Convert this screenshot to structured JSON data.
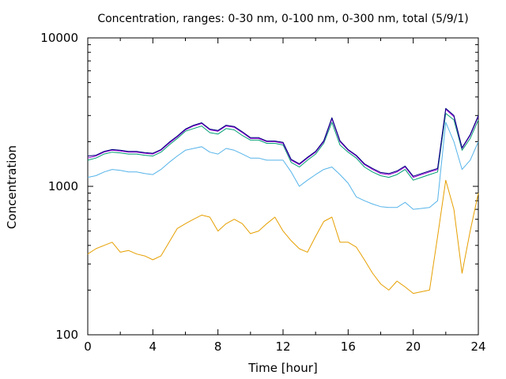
{
  "chart_data": {
    "type": "line",
    "title": "Concentration, ranges: 0-30 nm, 0-100 nm, 0-300 nm, total (5/9/1)",
    "xlabel": "Time [hour]",
    "ylabel": "Concentration",
    "xlim": [
      0,
      24
    ],
    "ylim": [
      100,
      10000
    ],
    "yscale": "log",
    "grid": false,
    "legend": "none",
    "xticks": [
      0,
      4,
      8,
      12,
      16,
      20,
      24
    ],
    "xtick_labels": [
      "0",
      "4",
      "8",
      "12",
      "16",
      "20",
      "24"
    ],
    "yticks": [
      100,
      1000,
      10000
    ],
    "ytick_labels": [
      "100",
      "1000",
      "10000"
    ],
    "x": [
      0,
      0.5,
      1,
      1.5,
      2,
      2.5,
      3,
      3.5,
      4,
      4.5,
      5,
      5.5,
      6,
      6.5,
      7,
      7.5,
      8,
      8.5,
      9,
      9.5,
      10,
      10.5,
      11,
      11.5,
      12,
      12.5,
      13,
      13.5,
      14,
      14.5,
      15,
      15.5,
      16,
      16.5,
      17,
      17.5,
      18,
      18.5,
      19,
      19.5,
      20,
      20.5,
      21,
      21.5,
      22,
      22.5,
      23,
      23.5,
      24
    ],
    "series": [
      {
        "color": "#e69f00",
        "values": [
          350,
          380,
          400,
          420,
          360,
          370,
          350,
          340,
          320,
          340,
          420,
          520,
          560,
          600,
          640,
          620,
          500,
          560,
          600,
          560,
          480,
          500,
          560,
          620,
          500,
          430,
          380,
          360,
          460,
          580,
          620,
          420,
          420,
          390,
          320,
          260,
          220,
          200,
          230,
          210,
          190,
          195,
          200,
          460,
          1100,
          700,
          260,
          500,
          900
        ]
      },
      {
        "color": "#56b4e9",
        "values": [
          1150,
          1180,
          1250,
          1300,
          1280,
          1250,
          1250,
          1220,
          1200,
          1300,
          1450,
          1600,
          1750,
          1800,
          1850,
          1700,
          1650,
          1800,
          1750,
          1650,
          1550,
          1550,
          1500,
          1500,
          1500,
          1250,
          1000,
          1100,
          1200,
          1300,
          1350,
          1200,
          1050,
          850,
          800,
          760,
          730,
          720,
          720,
          780,
          700,
          710,
          720,
          800,
          2700,
          2000,
          1300,
          1500,
          2000
        ]
      },
      {
        "color": "#009e73",
        "values": [
          1500,
          1550,
          1650,
          1700,
          1680,
          1650,
          1650,
          1620,
          1600,
          1700,
          1900,
          2100,
          2350,
          2450,
          2550,
          2300,
          2250,
          2450,
          2400,
          2200,
          2050,
          2050,
          1950,
          1950,
          1900,
          1450,
          1350,
          1500,
          1650,
          1950,
          2700,
          1900,
          1700,
          1550,
          1350,
          1250,
          1180,
          1150,
          1200,
          1300,
          1100,
          1150,
          1200,
          1250,
          3100,
          2800,
          1750,
          2100,
          2800
        ]
      },
      {
        "color": "#9400d3",
        "values": [
          1550,
          1600,
          1700,
          1750,
          1730,
          1700,
          1700,
          1670,
          1650,
          1750,
          1950,
          2150,
          2400,
          2550,
          2650,
          2400,
          2350,
          2550,
          2500,
          2300,
          2100,
          2100,
          2000,
          2000,
          1950,
          1500,
          1400,
          1550,
          1700,
          2000,
          2850,
          2000,
          1750,
          1600,
          1400,
          1300,
          1220,
          1200,
          1250,
          1350,
          1150,
          1200,
          1250,
          1300,
          3300,
          2950,
          1800,
          2200,
          2950
        ]
      },
      {
        "color": "#000080",
        "values": [
          1600,
          1620,
          1720,
          1770,
          1750,
          1720,
          1720,
          1690,
          1670,
          1770,
          1980,
          2180,
          2430,
          2580,
          2680,
          2430,
          2380,
          2580,
          2530,
          2330,
          2130,
          2130,
          2020,
          2020,
          1980,
          1520,
          1420,
          1570,
          1720,
          2030,
          2900,
          2030,
          1770,
          1620,
          1420,
          1320,
          1240,
          1220,
          1270,
          1370,
          1170,
          1220,
          1270,
          1320,
          3350,
          3000,
          1820,
          2230,
          3000
        ]
      }
    ]
  }
}
